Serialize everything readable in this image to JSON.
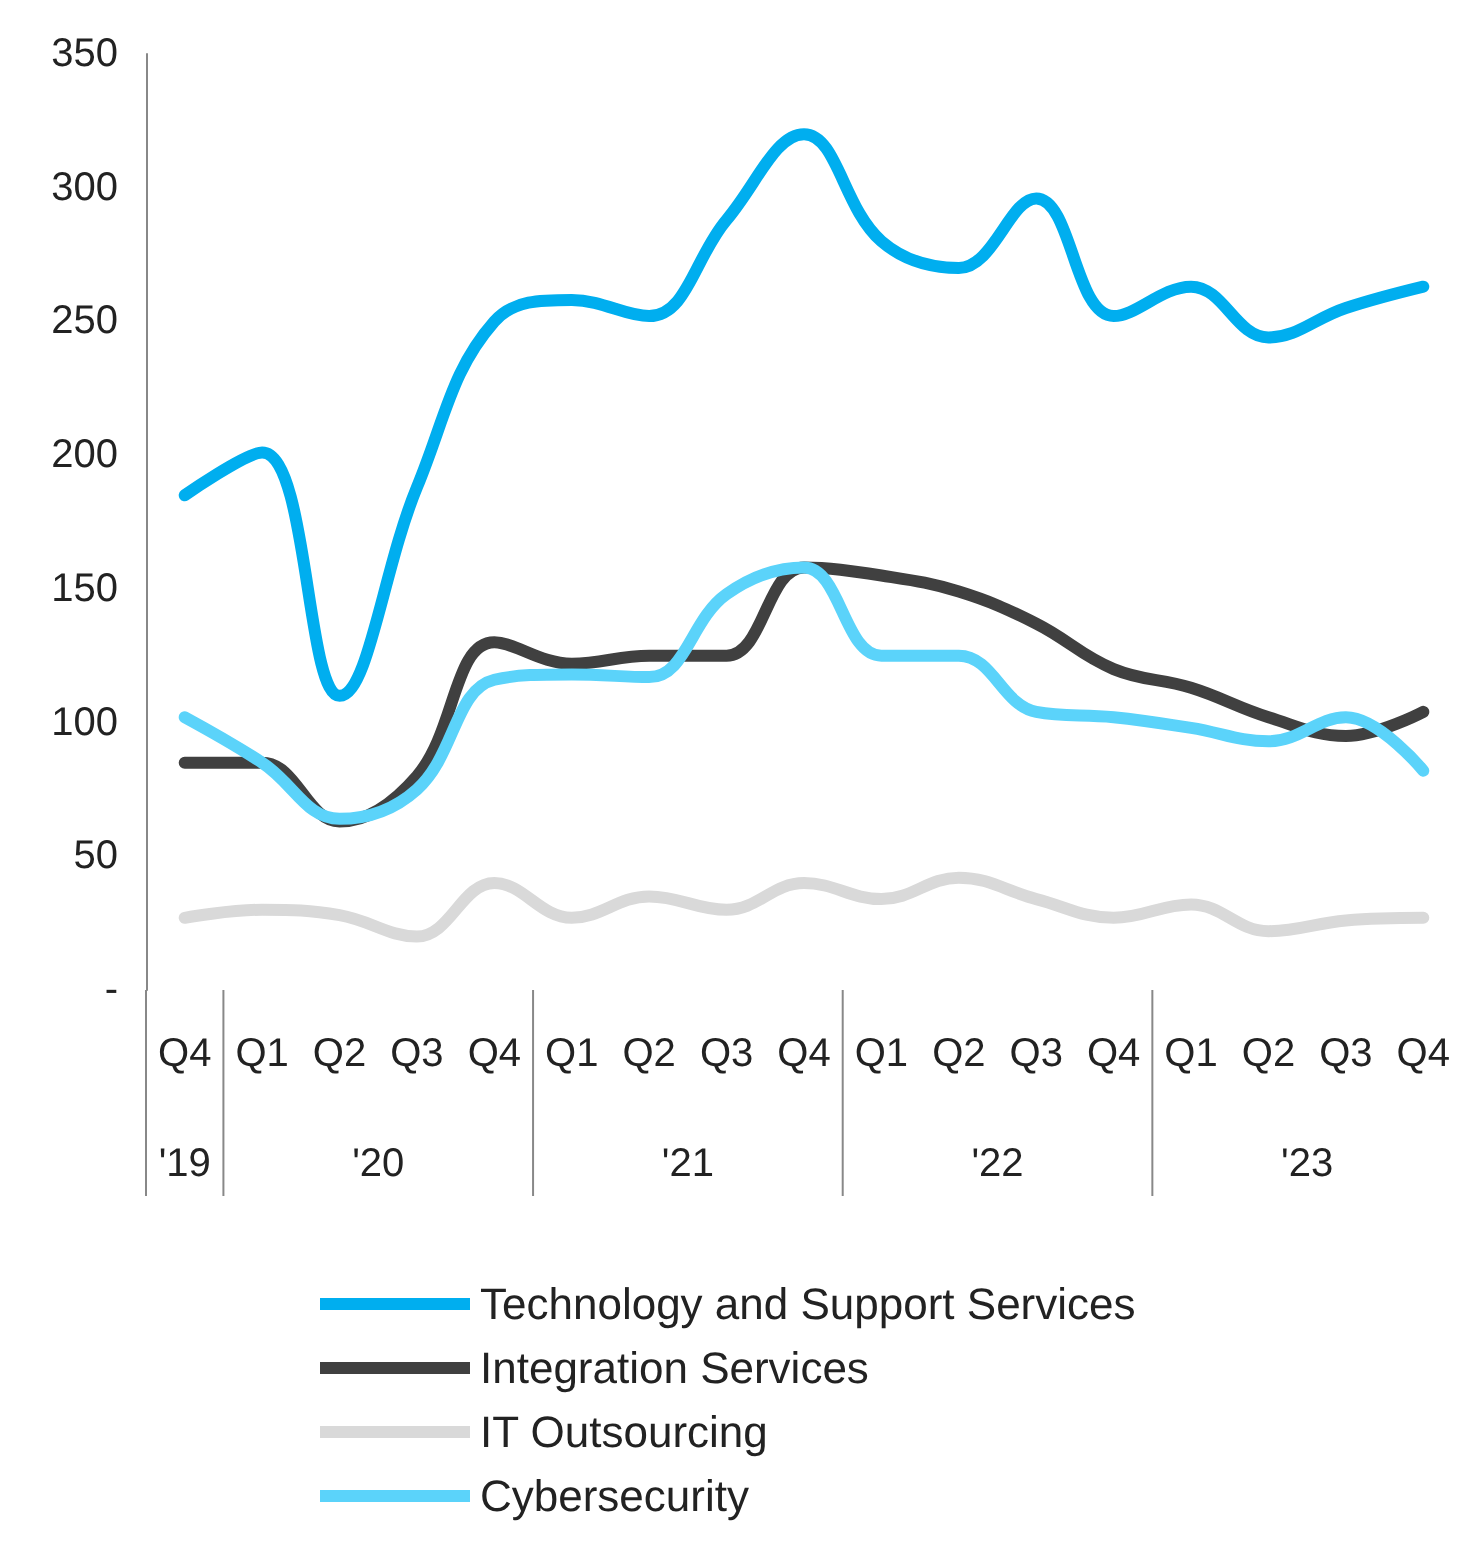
{
  "chart_data": {
    "type": "line",
    "categories": [
      "Q4",
      "Q1",
      "Q2",
      "Q3",
      "Q4",
      "Q1",
      "Q2",
      "Q3",
      "Q4",
      "Q1",
      "Q2",
      "Q3",
      "Q4",
      "Q1",
      "Q2",
      "Q3",
      "Q4"
    ],
    "series": [
      {
        "name": "Technology and Support Services",
        "color": "#00aeef",
        "values": [
          185,
          201,
          110,
          188,
          250,
          258,
          252,
          288,
          320,
          280,
          270,
          296,
          252,
          263,
          244,
          255,
          263
        ]
      },
      {
        "name": "Integration Services",
        "color": "#404040",
        "values": [
          85,
          85,
          63,
          80,
          130,
          122,
          125,
          125,
          158,
          155,
          149,
          137,
          120,
          113,
          102,
          95,
          104
        ]
      },
      {
        "name": "IT Outsourcing",
        "color": "#d9d9d9",
        "values": [
          27,
          30,
          28,
          20,
          40,
          27,
          35,
          30,
          40,
          34,
          42,
          34,
          27,
          32,
          22,
          26,
          27
        ]
      },
      {
        "name": "Cybersecurity",
        "color": "#5bd3fa",
        "values": [
          102,
          85,
          64,
          75,
          116,
          118,
          117,
          148,
          158,
          125,
          125,
          104,
          102,
          98,
          93,
          102,
          82
        ]
      }
    ],
    "annotations": [
      "'19",
      "'20",
      "'21",
      "'22",
      "'23"
    ],
    "ylim": [
      0,
      350
    ],
    "yticks": [
      {
        "value": 0,
        "label": "-"
      },
      50,
      100,
      150,
      200,
      250,
      300,
      350
    ],
    "grid": false,
    "legend": "bottom",
    "marker": "none",
    "line_style": "solid"
  }
}
